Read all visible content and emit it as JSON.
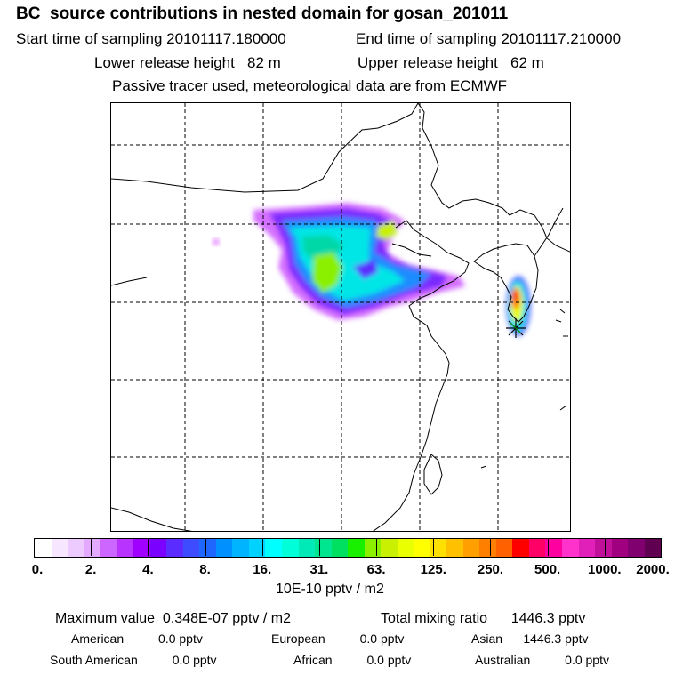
{
  "header": {
    "title": "BC  source contributions in nested domain for gosan_201011",
    "start_label": "Start time of sampling 20101117.180000",
    "end_label": "End time of sampling 20101117.210000",
    "lower_label": "Lower release height   82 m",
    "upper_label": "Upper release height   62 m",
    "tracer_note": "Passive tracer used, meteorological data are from ECMWF"
  },
  "map": {
    "receptor_marker": "star-icon",
    "grid": "dashed"
  },
  "colorbar": {
    "colors": [
      "#ffffff",
      "#f7e6ff",
      "#eecbff",
      "#e3aaff",
      "#cc66ff",
      "#b833ff",
      "#a000ff",
      "#7a00ff",
      "#5a2cff",
      "#3d4cff",
      "#1f66ff",
      "#0090ff",
      "#00b4ff",
      "#00d2ff",
      "#00ffff",
      "#00ffd8",
      "#00eab8",
      "#00e690",
      "#00e060",
      "#18f000",
      "#8af000",
      "#c8f000",
      "#eaff00",
      "#ffff00",
      "#ffe000",
      "#ffc000",
      "#ffa000",
      "#ff8000",
      "#ff6000",
      "#ff0000",
      "#ff0066",
      "#ff00a0",
      "#ff33cc",
      "#e020b8",
      "#c01099",
      "#a00080",
      "#800070",
      "#600050"
    ],
    "labels": [
      "0.",
      "2.",
      "4.",
      "8.",
      "16.",
      "31.",
      "63.",
      "125.",
      "250.",
      "500.",
      "1000.",
      "2000."
    ],
    "unit": "10E-10 pptv / m2"
  },
  "footer": {
    "max_label": "Maximum value  0.348E-07 pptv / m2",
    "total_label": "Total mixing ratio      1446.3 pptv",
    "american": "American          0.0 pptv",
    "european": "European          0.0 pptv",
    "asian": "Asian      1446.3 pptv",
    "south_american": "South American          0.0 pptv",
    "african": "African          0.0 pptv",
    "australian": "Australian          0.0 pptv"
  }
}
